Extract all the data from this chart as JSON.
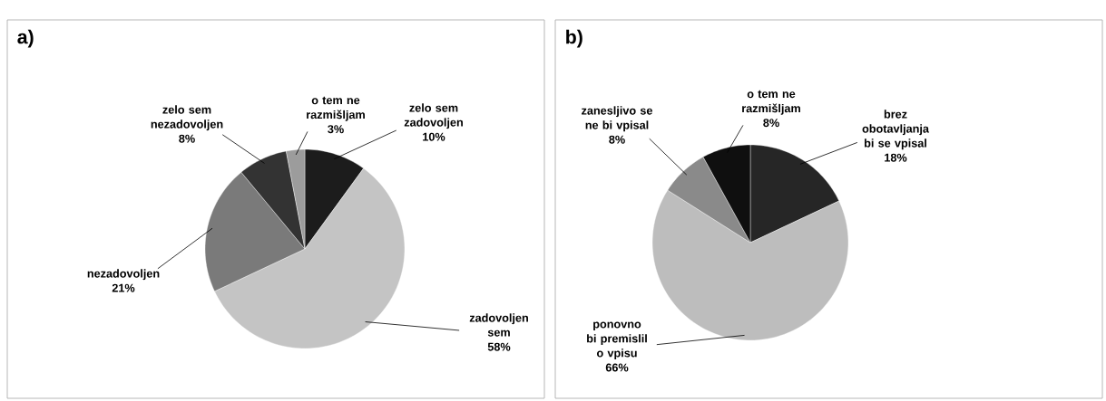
{
  "chart_data": [
    {
      "type": "pie",
      "title": "a)",
      "categories": [
        "zelo sem zadovoljen",
        "zadovoljen sem",
        "nezadovoljen",
        "zelo sem nezadovoljen",
        "o tem ne razmišljam"
      ],
      "values": [
        10,
        58,
        21,
        8,
        3
      ],
      "value_labels": [
        "10%",
        "58%",
        "21%",
        "8%",
        "3%"
      ],
      "colors": [
        "#1c1c1c",
        "#c4c4c4",
        "#7a7a7a",
        "#333333",
        "#9c9c9c"
      ]
    },
    {
      "type": "pie",
      "title": "b)",
      "categories": [
        "brez obotavljanja bi se vpisal",
        "ponovno bi premislil o vpisu",
        "zanesljivo se ne bi vpisal",
        "o tem ne razmišljam"
      ],
      "values": [
        18,
        66,
        8,
        8
      ],
      "value_labels": [
        "18%",
        "66%",
        "8%",
        "8%"
      ],
      "colors": [
        "#262626",
        "#bdbdbd",
        "#8a8a8a",
        "#0f0f0f"
      ]
    }
  ]
}
